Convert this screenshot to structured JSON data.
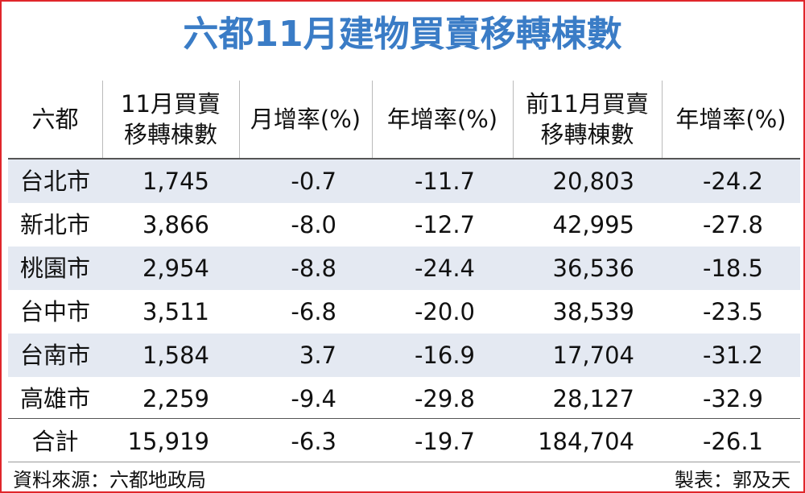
{
  "title": "六都11月建物買賣移轉棟數",
  "table": {
    "header": [
      [
        "六都"
      ],
      [
        "11月買賣",
        "移轉棟數"
      ],
      [
        "月增率(%)"
      ],
      [
        "年增率(%)"
      ],
      [
        "前11月買賣",
        "移轉棟數"
      ],
      [
        "年增率(%)"
      ]
    ],
    "rows": [
      [
        "台北市",
        "1,745",
        "-0.7",
        "-11.7",
        "20,803",
        "-24.2"
      ],
      [
        "新北市",
        "3,866",
        "-8.0",
        "-12.7",
        "42,995",
        "-27.8"
      ],
      [
        "桃園市",
        "2,954",
        "-8.8",
        "-24.4",
        "36,536",
        "-18.5"
      ],
      [
        "台中市",
        "3,511",
        "-6.8",
        "-20.0",
        "38,539",
        "-23.5"
      ],
      [
        "台南市",
        "1,584",
        "3.7",
        "-16.9",
        "17,704",
        "-31.2"
      ],
      [
        "高雄市",
        "2,259",
        "-9.4",
        "-29.8",
        "28,127",
        "-32.9"
      ]
    ],
    "total": [
      "合計",
      "15,919",
      "-6.3",
      "-19.7",
      "184,704",
      "-26.1"
    ]
  },
  "footer": {
    "source": "資料來源：六都地政局",
    "credit": "製表：郭及天"
  }
}
